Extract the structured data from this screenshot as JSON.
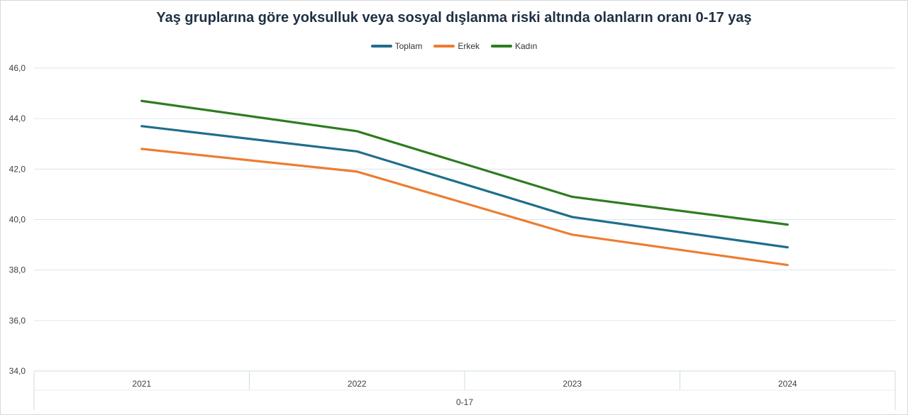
{
  "chart_data": {
    "type": "line",
    "title": "Yaş gruplarına göre yoksulluk veya sosyal dışlanma riski altında olanların oranı 0-17 yaş",
    "categories": [
      "2021",
      "2022",
      "2023",
      "2024"
    ],
    "group_label": "0-17",
    "y_ticks": [
      "34,0",
      "36,0",
      "38,0",
      "40,0",
      "42,0",
      "44,0",
      "46,0"
    ],
    "ylim": [
      34,
      46
    ],
    "grid": true,
    "legend_position": "top",
    "series": [
      {
        "name": "Toplam",
        "color": "#1f6e8c",
        "values": [
          43.7,
          42.7,
          40.1,
          38.9
        ]
      },
      {
        "name": "Erkek",
        "color": "#ed7d31",
        "values": [
          42.8,
          41.9,
          39.4,
          38.2
        ]
      },
      {
        "name": "Kadın",
        "color": "#2e7d1f",
        "values": [
          44.7,
          43.5,
          40.9,
          39.8
        ]
      }
    ]
  }
}
